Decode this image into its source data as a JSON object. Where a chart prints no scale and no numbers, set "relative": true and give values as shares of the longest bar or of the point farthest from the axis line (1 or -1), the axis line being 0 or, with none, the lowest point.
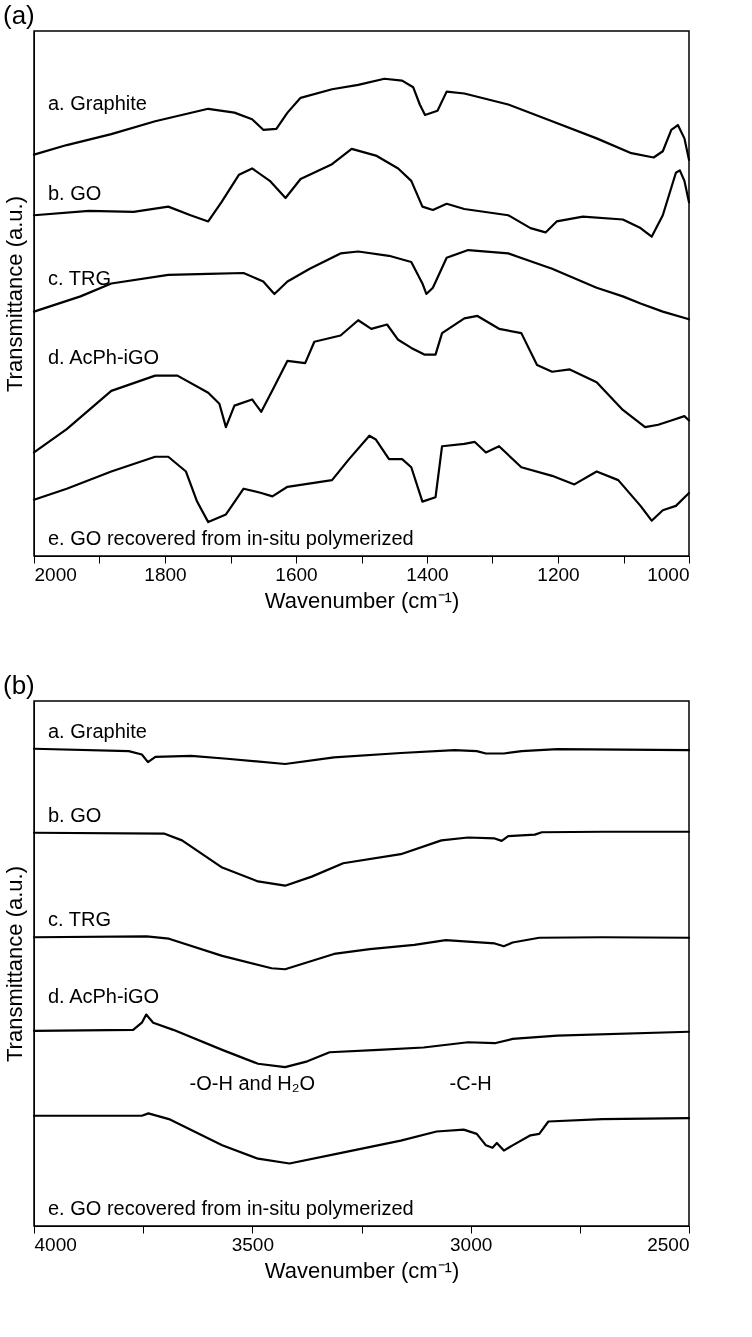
{
  "chart_data": [
    {
      "type": "line",
      "title": "(a)",
      "xlabel": "Wavenumber (cm⁻¹)",
      "ylabel": "Transmittance (a.u.)",
      "relative": true,
      "xlim": [
        2000,
        1000
      ],
      "xticks": [
        2000,
        {
          "value": 1900,
          "label": null
        },
        1800,
        {
          "value": 1700,
          "label": null
        },
        1600,
        {
          "value": 1500,
          "label": null
        },
        1400,
        {
          "value": 1300,
          "label": null
        },
        1200,
        {
          "value": 1100,
          "label": null
        },
        1000
      ],
      "series": [
        {
          "name": "a. Graphite",
          "color": "#000000",
          "x": [
            2000,
            1950,
            1882,
            1815,
            1734,
            1694,
            1667,
            1650,
            1630,
            1613,
            1593,
            1545,
            1505,
            1465,
            1438,
            1421,
            1411,
            1403,
            1384,
            1370,
            1343,
            1276,
            1209,
            1141,
            1088,
            1054,
            1040,
            1027,
            1017,
            1007,
            1000
          ],
          "values": [
            0.841,
            0.861,
            0.884,
            0.911,
            0.937,
            0.929,
            0.915,
            0.893,
            0.895,
            0.929,
            0.96,
            0.978,
            0.987,
            1.0,
            0.996,
            0.982,
            0.946,
            0.924,
            0.933,
            0.973,
            0.969,
            0.946,
            0.911,
            0.875,
            0.844,
            0.835,
            0.848,
            0.893,
            0.903,
            0.875,
            0.83
          ]
        },
        {
          "name": "b. GO",
          "color": "#000000",
          "x": [
            2000,
            1916,
            1848,
            1795,
            1761,
            1734,
            1714,
            1687,
            1667,
            1640,
            1616,
            1593,
            1545,
            1515,
            1478,
            1444,
            1424,
            1407,
            1391,
            1370,
            1343,
            1276,
            1242,
            1219,
            1202,
            1162,
            1101,
            1074,
            1057,
            1040,
            1020,
            1014,
            1007,
            1000
          ],
          "values": [
            0.714,
            0.723,
            0.721,
            0.732,
            0.714,
            0.701,
            0.741,
            0.799,
            0.812,
            0.786,
            0.75,
            0.79,
            0.821,
            0.853,
            0.839,
            0.812,
            0.786,
            0.732,
            0.725,
            0.738,
            0.727,
            0.714,
            0.687,
            0.678,
            0.701,
            0.711,
            0.705,
            0.687,
            0.669,
            0.714,
            0.803,
            0.808,
            0.786,
            0.741
          ]
        },
        {
          "name": "c. TRG",
          "color": "#000000",
          "x": [
            2000,
            1929,
            1882,
            1795,
            1734,
            1680,
            1650,
            1633,
            1613,
            1579,
            1532,
            1505,
            1458,
            1424,
            1407,
            1401,
            1391,
            1370,
            1337,
            1276,
            1209,
            1141,
            1101,
            1074,
            1040,
            1000
          ],
          "values": [
            0.512,
            0.544,
            0.571,
            0.589,
            0.591,
            0.593,
            0.575,
            0.549,
            0.575,
            0.602,
            0.634,
            0.638,
            0.629,
            0.616,
            0.571,
            0.549,
            0.562,
            0.625,
            0.641,
            0.634,
            0.602,
            0.562,
            0.544,
            0.529,
            0.512,
            0.496
          ]
        },
        {
          "name": "d. AcPh-iGO",
          "color": "#000000",
          "x": [
            2000,
            1950,
            1882,
            1815,
            1781,
            1734,
            1717,
            1707,
            1694,
            1667,
            1653,
            1633,
            1613,
            1586,
            1572,
            1532,
            1505,
            1485,
            1461,
            1444,
            1424,
            1404,
            1387,
            1377,
            1343,
            1323,
            1290,
            1256,
            1232,
            1209,
            1182,
            1141,
            1101,
            1067,
            1047,
            1027,
            1007,
            1000
          ],
          "values": [
            0.217,
            0.266,
            0.346,
            0.378,
            0.378,
            0.342,
            0.319,
            0.27,
            0.315,
            0.328,
            0.302,
            0.355,
            0.409,
            0.404,
            0.449,
            0.462,
            0.494,
            0.476,
            0.485,
            0.453,
            0.436,
            0.422,
            0.422,
            0.467,
            0.498,
            0.503,
            0.476,
            0.467,
            0.4,
            0.386,
            0.391,
            0.364,
            0.306,
            0.27,
            0.275,
            0.284,
            0.293,
            0.284
          ]
        },
        {
          "name": "e. GO recovered from in-situ polymerized",
          "color": "#000000",
          "x": [
            2000,
            1950,
            1882,
            1815,
            1795,
            1768,
            1751,
            1734,
            1707,
            1680,
            1653,
            1636,
            1613,
            1545,
            1519,
            1488,
            1478,
            1458,
            1438,
            1424,
            1407,
            1387,
            1377,
            1343,
            1327,
            1310,
            1290,
            1256,
            1209,
            1175,
            1141,
            1108,
            1074,
            1057,
            1040,
            1020,
            1000
          ],
          "values": [
            0.118,
            0.141,
            0.177,
            0.208,
            0.208,
            0.177,
            0.114,
            0.071,
            0.087,
            0.141,
            0.132,
            0.125,
            0.145,
            0.159,
            0.203,
            0.252,
            0.244,
            0.203,
            0.203,
            0.186,
            0.114,
            0.123,
            0.23,
            0.235,
            0.239,
            0.217,
            0.23,
            0.186,
            0.168,
            0.15,
            0.177,
            0.159,
            0.105,
            0.074,
            0.096,
            0.105,
            0.132
          ]
        }
      ]
    },
    {
      "type": "line",
      "title": "(b)",
      "xlabel": "Wavenumber (cm⁻¹)",
      "ylabel": "Transmittance (a.u.)",
      "relative": true,
      "xlim": [
        4000,
        2500
      ],
      "xticks": [
        4000,
        {
          "value": 3750,
          "label": null
        },
        3500,
        {
          "value": 3250,
          "label": null
        },
        3000,
        {
          "value": 2750,
          "label": null
        },
        2500
      ],
      "annotations": [
        "-O-H and H₂O",
        "-C-H"
      ],
      "series": [
        {
          "name": "a. Graphite",
          "color": "#000000",
          "x": [
            4000,
            3783,
            3753,
            3739,
            3722,
            3640,
            3558,
            3425,
            3313,
            3160,
            3037,
            2986,
            2965,
            2924,
            2883,
            2802,
            2500
          ],
          "values": [
            1.0,
            0.995,
            0.988,
            0.972,
            0.983,
            0.985,
            0.979,
            0.968,
            0.982,
            0.991,
            0.997,
            0.995,
            0.99,
            0.99,
            0.995,
            0.999,
            0.997
          ]
        },
        {
          "name": "b. GO",
          "color": "#000000",
          "x": [
            4000,
            3701,
            3661,
            3569,
            3487,
            3425,
            3364,
            3292,
            3160,
            3067,
            3006,
            2945,
            2929,
            2914,
            2853,
            2837,
            2699,
            2500
          ],
          "values": [
            0.824,
            0.822,
            0.808,
            0.751,
            0.722,
            0.713,
            0.732,
            0.76,
            0.779,
            0.808,
            0.814,
            0.812,
            0.807,
            0.817,
            0.82,
            0.825,
            0.826,
            0.826
          ]
        },
        {
          "name": "c. TRG",
          "color": "#000000",
          "x": [
            4000,
            3742,
            3691,
            3569,
            3456,
            3425,
            3313,
            3231,
            3129,
            3057,
            3006,
            2945,
            2924,
            2904,
            2843,
            2699,
            2500
          ],
          "values": [
            0.605,
            0.607,
            0.602,
            0.566,
            0.54,
            0.538,
            0.57,
            0.58,
            0.589,
            0.599,
            0.596,
            0.592,
            0.586,
            0.594,
            0.604,
            0.605,
            0.604
          ]
        },
        {
          "name": "d. AcPh-iGO",
          "color": "#000000",
          "x": [
            4000,
            3773,
            3753,
            3743,
            3727,
            3681,
            3569,
            3487,
            3425,
            3374,
            3323,
            3211,
            3108,
            3006,
            2945,
            2904,
            2802,
            2500
          ],
          "values": [
            0.409,
            0.411,
            0.426,
            0.443,
            0.426,
            0.411,
            0.369,
            0.34,
            0.333,
            0.345,
            0.364,
            0.369,
            0.374,
            0.385,
            0.383,
            0.392,
            0.399,
            0.407
          ]
        },
        {
          "name": "e. GO recovered from in-situ polymerized",
          "color": "#000000",
          "x": [
            4000,
            3753,
            3738,
            3691,
            3569,
            3487,
            3415,
            3313,
            3160,
            3078,
            3016,
            2986,
            2965,
            2950,
            2940,
            2924,
            2904,
            2863,
            2843,
            2822,
            2699,
            2500
          ],
          "values": [
            0.231,
            0.231,
            0.236,
            0.224,
            0.169,
            0.141,
            0.131,
            0.15,
            0.179,
            0.198,
            0.202,
            0.193,
            0.169,
            0.164,
            0.174,
            0.158,
            0.169,
            0.19,
            0.193,
            0.219,
            0.224,
            0.226
          ]
        }
      ]
    }
  ]
}
